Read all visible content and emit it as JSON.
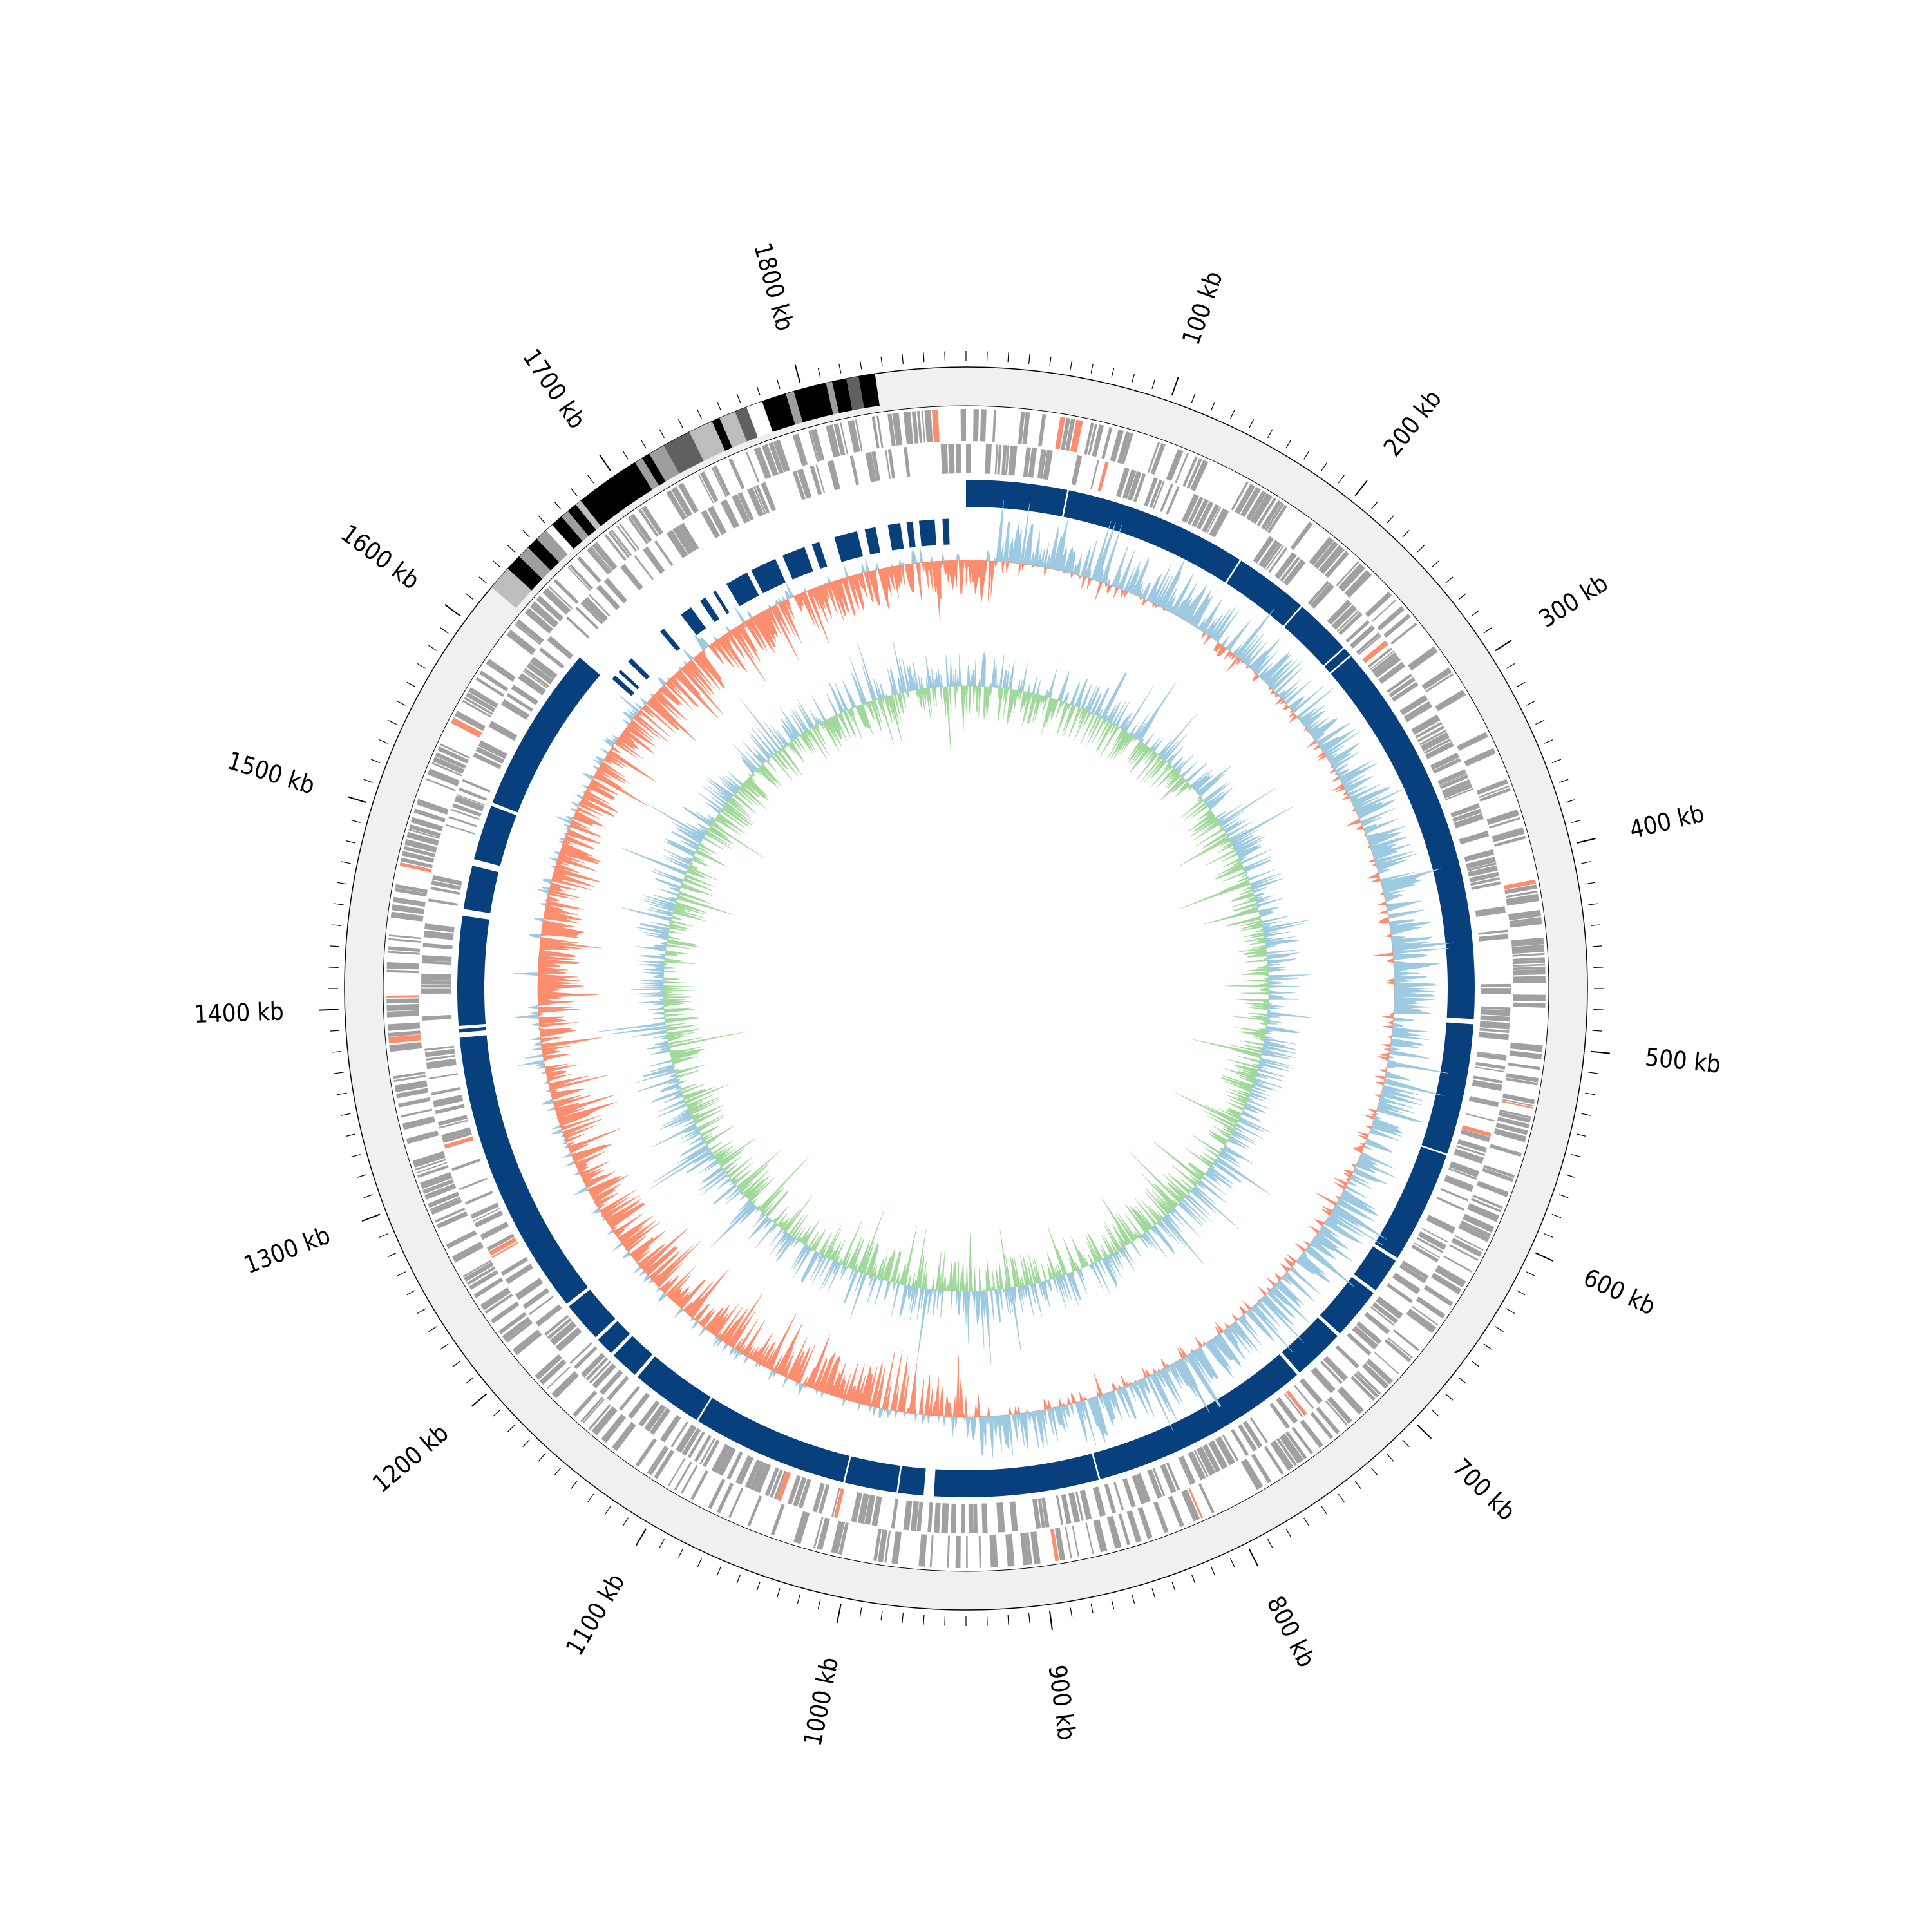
{
  "chart_data": {
    "type": "circular-genome-map",
    "genome_length_kb": 1880,
    "tick_labels": [
      "100 kb",
      "200 kb",
      "300 kb",
      "400 kb",
      "500 kb",
      "600 kb",
      "700 kb",
      "800 kb",
      "900 kb",
      "1000 kb",
      "1100 kb",
      "1200 kb",
      "1300 kb",
      "1400 kb",
      "1500 kb",
      "1600 kb",
      "1700 kb",
      "1800 kb"
    ],
    "tick_positions_kb": [
      100,
      200,
      300,
      400,
      500,
      600,
      700,
      800,
      900,
      1000,
      1100,
      1200,
      1300,
      1400,
      1500,
      1600,
      1700,
      1800
    ],
    "minor_tick_interval_kb": 10,
    "outer_region_bands_kb": [
      {
        "start": 1620,
        "end": 1632,
        "shade": "#bdbdbd"
      },
      {
        "start": 1632,
        "end": 1640,
        "shade": "#000000"
      },
      {
        "start": 1640,
        "end": 1646,
        "shade": "#9e9e9e"
      },
      {
        "start": 1646,
        "end": 1652,
        "shade": "#000000"
      },
      {
        "start": 1652,
        "end": 1658,
        "shade": "#9e9e9e"
      },
      {
        "start": 1658,
        "end": 1662,
        "shade": "#ffffff"
      },
      {
        "start": 1662,
        "end": 1668,
        "shade": "#000000"
      },
      {
        "start": 1668,
        "end": 1672,
        "shade": "#9e9e9e"
      },
      {
        "start": 1672,
        "end": 1677,
        "shade": "#000000"
      },
      {
        "start": 1677,
        "end": 1680,
        "shade": "#bdbdbd"
      },
      {
        "start": 1680,
        "end": 1712,
        "shade": "#000000"
      },
      {
        "start": 1712,
        "end": 1716,
        "shade": "#9e9e9e"
      },
      {
        "start": 1716,
        "end": 1720,
        "shade": "#000000"
      },
      {
        "start": 1720,
        "end": 1728,
        "shade": "#9e9e9e"
      },
      {
        "start": 1728,
        "end": 1742,
        "shade": "#606060"
      },
      {
        "start": 1742,
        "end": 1754,
        "shade": "#bdbdbd"
      },
      {
        "start": 1754,
        "end": 1758,
        "shade": "#000000"
      },
      {
        "start": 1758,
        "end": 1766,
        "shade": "#bdbdbd"
      },
      {
        "start": 1766,
        "end": 1772,
        "shade": "#606060"
      },
      {
        "start": 1772,
        "end": 1780,
        "shade": "#ffffff"
      },
      {
        "start": 1780,
        "end": 1792,
        "shade": "#000000"
      },
      {
        "start": 1792,
        "end": 1796,
        "shade": "#9e9e9e"
      },
      {
        "start": 1796,
        "end": 1812,
        "shade": "#000000"
      },
      {
        "start": 1812,
        "end": 1815,
        "shade": "#9e9e9e"
      },
      {
        "start": 1815,
        "end": 1822,
        "shade": "#000000"
      },
      {
        "start": 1822,
        "end": 1828,
        "shade": "#606060"
      },
      {
        "start": 1828,
        "end": 1836,
        "shade": "#000000"
      }
    ],
    "alignment_blocks_kb": [
      [
        0,
        60
      ],
      [
        61,
        170
      ],
      [
        171,
        215
      ],
      [
        216,
        250
      ],
      [
        251,
        256
      ],
      [
        257,
        488
      ],
      [
        491,
        569
      ],
      [
        570,
        637
      ],
      [
        639,
        660
      ],
      [
        662,
        693
      ],
      [
        695,
        726
      ],
      [
        728,
        860
      ],
      [
        861,
        959
      ],
      [
        965,
        980
      ],
      [
        981,
        1012
      ],
      [
        1013,
        1106
      ],
      [
        1107,
        1150
      ],
      [
        1152,
        1169
      ],
      [
        1171,
        1182
      ],
      [
        1184,
        1208
      ],
      [
        1210,
        1381
      ],
      [
        1384,
        1386
      ],
      [
        1388,
        1453
      ],
      [
        1457,
        1483
      ],
      [
        1487,
        1520
      ],
      [
        1522,
        1622
      ]
    ],
    "alignment_fragments_kb": [
      [
        1625,
        1628
      ],
      [
        1631,
        1633
      ],
      [
        1640,
        1643
      ],
      [
        1668,
        1671
      ],
      [
        1685,
        1693
      ],
      [
        1700,
        1704
      ],
      [
        1710,
        1712
      ],
      [
        1720,
        1735
      ],
      [
        1738,
        1755
      ],
      [
        1760,
        1775
      ],
      [
        1780,
        1785
      ],
      [
        1795,
        1810
      ],
      [
        1815,
        1822
      ],
      [
        1830,
        1838
      ],
      [
        1842,
        1846
      ],
      [
        1850,
        1860
      ],
      [
        1865,
        1869
      ]
    ],
    "series": [
      {
        "name": "",
        "track": "outer",
        "color_positive": "#9ecae1",
        "color_negative": "#fc8d6e"
      },
      {
        "name": "",
        "track": "inner",
        "color_positive": "#9ecae1",
        "color_negative": "#a1d99b"
      }
    ],
    "colors": {
      "outer_ring": "#f0f0f0",
      "gene_feature": "#a0a0a0",
      "rna_feature": "#fc8d6e",
      "alignment": "#08407e",
      "gc_skew_positive": "#9ecae1",
      "gc_skew_negative": "#fc8d6e",
      "gc_content_positive": "#9ecae1",
      "gc_content_negative": "#a1d99b"
    },
    "legend": "none",
    "grid": false
  }
}
